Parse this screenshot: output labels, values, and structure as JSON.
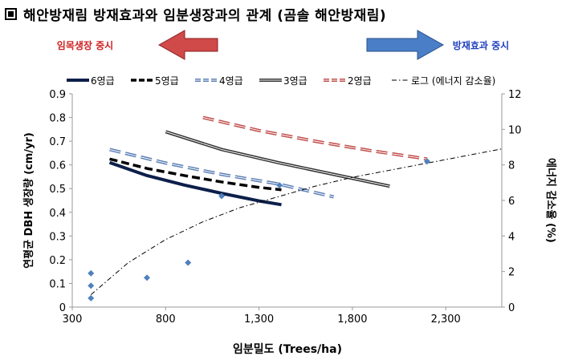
{
  "title": "해안방재림 방재효과와 임분생장과의 관계 (곰솔 해안방재림)",
  "arrows": {
    "left": {
      "label": "임목생장 중시",
      "color": "#d04a4a",
      "text_color": "#d02020"
    },
    "right": {
      "label": "방재효과 중시",
      "color": "#4a7fc8",
      "text_color": "#2040c0"
    }
  },
  "chart_data": {
    "type": "line",
    "xlabel": "임분밀도 (Trees/ha)",
    "ylabel": "연평균 DBH 생장량 (cm/yr)",
    "y2label": "에너지 감소율 (%)",
    "xlim": [
      300,
      2600
    ],
    "ylim": [
      0,
      0.9
    ],
    "y2lim": [
      0,
      12
    ],
    "xticks": [
      "300",
      "800",
      "1,300",
      "1,800",
      "2,300"
    ],
    "xtick_values": [
      300,
      800,
      1300,
      1800,
      2300
    ],
    "yticks": [
      "0",
      "0.1",
      "0.2",
      "0.3",
      "0.4",
      "0.5",
      "0.6",
      "0.7",
      "0.8",
      "0.9"
    ],
    "ytick_values": [
      0,
      0.1,
      0.2,
      0.3,
      0.4,
      0.5,
      0.6,
      0.7,
      0.8,
      0.9
    ],
    "y2ticks": [
      "0",
      "2",
      "4",
      "6",
      "8",
      "10",
      "12"
    ],
    "y2tick_values": [
      0,
      2,
      4,
      6,
      8,
      10,
      12
    ],
    "series": [
      {
        "name": "6영급",
        "color": "#0d1f4a",
        "style": "solid-bold",
        "axis": "left",
        "x": [
          500,
          700,
          900,
          1100,
          1300,
          1420
        ],
        "y": [
          0.61,
          0.555,
          0.515,
          0.48,
          0.448,
          0.432
        ]
      },
      {
        "name": "5영급",
        "color": "#000000",
        "style": "dashed-bold",
        "axis": "left",
        "x": [
          500,
          700,
          900,
          1100,
          1300,
          1420
        ],
        "y": [
          0.625,
          0.585,
          0.555,
          0.528,
          0.505,
          0.495
        ]
      },
      {
        "name": "4영급",
        "color": "#5b7fb5",
        "style": "dashed-double",
        "axis": "left",
        "x": [
          500,
          800,
          1100,
          1400,
          1700
        ],
        "y": [
          0.665,
          0.608,
          0.56,
          0.52,
          0.465
        ]
      },
      {
        "name": "3영급",
        "color": "#333333",
        "style": "solid-double",
        "axis": "left",
        "x": [
          800,
          1100,
          1400,
          1700,
          2000
        ],
        "y": [
          0.74,
          0.665,
          0.61,
          0.56,
          0.51
        ]
      },
      {
        "name": "2영급",
        "color": "#c0504d",
        "style": "dashed-double",
        "axis": "left",
        "x": [
          1000,
          1300,
          1600,
          1900,
          2200
        ],
        "y": [
          0.8,
          0.745,
          0.7,
          0.66,
          0.625
        ]
      },
      {
        "name": "로그 (에너지 감소율)",
        "color": "#000000",
        "style": "dashdot",
        "axis": "right",
        "x": [
          400,
          600,
          800,
          1000,
          1200,
          1400,
          1600,
          1800,
          2000,
          2200,
          2400,
          2600
        ],
        "y": [
          0.7,
          2.5,
          3.8,
          4.8,
          5.6,
          6.2,
          6.8,
          7.3,
          7.7,
          8.1,
          8.5,
          8.9
        ]
      }
    ],
    "scatter": {
      "name": "에너지 감소율",
      "color": "#4f81bd",
      "axis": "right",
      "points": [
        [
          400,
          1.9
        ],
        [
          400,
          1.2
        ],
        [
          400,
          0.5
        ],
        [
          700,
          1.65
        ],
        [
          920,
          2.5
        ],
        [
          1100,
          6.25
        ],
        [
          1410,
          6.85
        ],
        [
          2200,
          8.2
        ]
      ]
    }
  }
}
